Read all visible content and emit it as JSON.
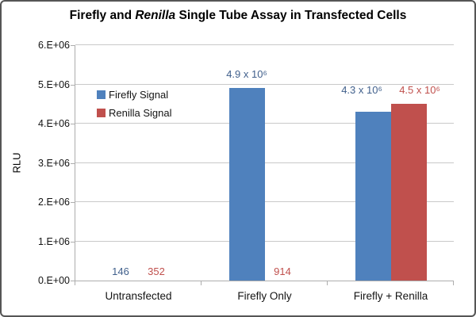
{
  "title": {
    "prefix": "Firefly and ",
    "italic": "Renilla",
    "suffix": " Single Tube Assay in Transfected Cells"
  },
  "chart_data": {
    "type": "bar",
    "title": "Firefly and Renilla Single Tube Assay in Transfected Cells",
    "title_italic_word": "Renilla",
    "xlabel": "",
    "ylabel": "RLU",
    "categories": [
      "Untransfected",
      "Firefly Only",
      "Firefly + Renilla"
    ],
    "series": [
      {
        "name": "Firefly Signal",
        "color": "#4F81BD",
        "label_color": "#41608C",
        "values": [
          146,
          4900000,
          4300000
        ],
        "value_labels": [
          "146",
          "4.9 x 10⁶",
          "4.3 x 10⁶"
        ]
      },
      {
        "name": "Renilla Signal",
        "color": "#C0504D",
        "label_color": "#C0504D",
        "values": [
          352,
          914,
          4500000
        ],
        "value_labels": [
          "352",
          "914",
          "4.5 x 10⁶"
        ]
      }
    ],
    "y_axis": {
      "ymin": 0,
      "ymax": 6000000,
      "ticks": [
        0,
        1000000,
        2000000,
        3000000,
        4000000,
        5000000,
        6000000
      ],
      "tick_labels": [
        "0.E+00",
        "1.E+06",
        "2.E+06",
        "3.E+06",
        "4.E+06",
        "5.E+06",
        "6.E+06"
      ]
    },
    "grid": "horizontal",
    "legend_position": "inside-top-left",
    "colors": {
      "gridline": "#C9C9C9",
      "axis": "#ADADAD",
      "text": "#000000"
    }
  }
}
